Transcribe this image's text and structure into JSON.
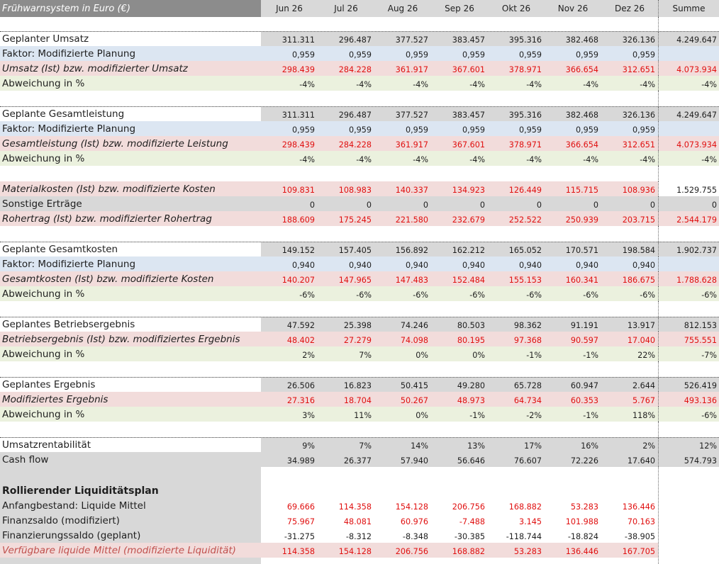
{
  "header": {
    "title": "Frühwarnsystem in Euro (€)",
    "months": [
      "Jun 26",
      "Jul 26",
      "Aug 26",
      "Sep 26",
      "Okt 26",
      "Nov 26",
      "Dez 26"
    ],
    "sum_label": "Summe"
  },
  "rows": {
    "umsatz_plan": {
      "label": "Geplanter Umsatz",
      "values": [
        "311.311",
        "296.487",
        "377.527",
        "383.457",
        "395.316",
        "382.468",
        "326.136"
      ],
      "sum": "4.249.647"
    },
    "umsatz_factor": {
      "label": "Faktor: Modifizierte Planung",
      "values": [
        "0,959",
        "0,959",
        "0,959",
        "0,959",
        "0,959",
        "0,959",
        "0,959"
      ],
      "sum": ""
    },
    "umsatz_ist": {
      "label": "Umsatz (Ist) bzw. modifizierter Umsatz",
      "values": [
        "298.439",
        "284.228",
        "361.917",
        "367.601",
        "378.971",
        "366.654",
        "312.651"
      ],
      "sum": "4.073.934"
    },
    "umsatz_dev": {
      "label": "Abweichung in %",
      "values": [
        "-4%",
        "-4%",
        "-4%",
        "-4%",
        "-4%",
        "-4%",
        "-4%"
      ],
      "sum": "-4%"
    },
    "gl_plan": {
      "label": "Geplante Gesamtleistung",
      "values": [
        "311.311",
        "296.487",
        "377.527",
        "383.457",
        "395.316",
        "382.468",
        "326.136"
      ],
      "sum": "4.249.647"
    },
    "gl_factor": {
      "label": "Faktor: Modifizierte Planung",
      "values": [
        "0,959",
        "0,959",
        "0,959",
        "0,959",
        "0,959",
        "0,959",
        "0,959"
      ],
      "sum": ""
    },
    "gl_ist": {
      "label": "Gesamtleistung (Ist) bzw. modifizierte Leistung",
      "values": [
        "298.439",
        "284.228",
        "361.917",
        "367.601",
        "378.971",
        "366.654",
        "312.651"
      ],
      "sum": "4.073.934"
    },
    "gl_dev": {
      "label": "Abweichung in %",
      "values": [
        "-4%",
        "-4%",
        "-4%",
        "-4%",
        "-4%",
        "-4%",
        "-4%"
      ],
      "sum": "-4%"
    },
    "material": {
      "label": "Materialkosten (Ist) bzw. modifizierte Kosten",
      "values": [
        "109.831",
        "108.983",
        "140.337",
        "134.923",
        "126.449",
        "115.715",
        "108.936"
      ],
      "sum": "1.529.755"
    },
    "sonstige": {
      "label": "Sonstige Erträge",
      "values": [
        "0",
        "0",
        "0",
        "0",
        "0",
        "0",
        "0"
      ],
      "sum": "0"
    },
    "rohertrag": {
      "label": "Rohertrag (Ist) bzw. modifizierter Rohertrag",
      "values": [
        "188.609",
        "175.245",
        "221.580",
        "232.679",
        "252.522",
        "250.939",
        "203.715"
      ],
      "sum": "2.544.179"
    },
    "gk_plan": {
      "label": "Geplante Gesamtkosten",
      "values": [
        "149.152",
        "157.405",
        "156.892",
        "162.212",
        "165.052",
        "170.571",
        "198.584"
      ],
      "sum": "1.902.737"
    },
    "gk_factor": {
      "label": "Faktor: Modifizierte Planung",
      "values": [
        "0,940",
        "0,940",
        "0,940",
        "0,940",
        "0,940",
        "0,940",
        "0,940"
      ],
      "sum": ""
    },
    "gk_ist": {
      "label": "Gesamtkosten (Ist) bzw. modifizierte Kosten",
      "values": [
        "140.207",
        "147.965",
        "147.483",
        "152.484",
        "155.153",
        "160.341",
        "186.675"
      ],
      "sum": "1.788.628"
    },
    "gk_dev": {
      "label": "Abweichung in %",
      "values": [
        "-6%",
        "-6%",
        "-6%",
        "-6%",
        "-6%",
        "-6%",
        "-6%"
      ],
      "sum": "-6%"
    },
    "be_plan": {
      "label": "Geplantes Betriebsergebnis",
      "values": [
        "47.592",
        "25.398",
        "74.246",
        "80.503",
        "98.362",
        "91.191",
        "13.917"
      ],
      "sum": "812.153"
    },
    "be_ist": {
      "label": "Betriebsergebnis (Ist) bzw. modifiziertes Ergebnis",
      "values": [
        "48.402",
        "27.279",
        "74.098",
        "80.195",
        "97.368",
        "90.597",
        "17.040"
      ],
      "sum": "755.551"
    },
    "be_dev": {
      "label": "Abweichung in %",
      "values": [
        "2%",
        "7%",
        "0%",
        "0%",
        "-1%",
        "-1%",
        "22%"
      ],
      "sum": "-7%"
    },
    "erg_plan": {
      "label": "Geplantes Ergebnis",
      "values": [
        "26.506",
        "16.823",
        "50.415",
        "49.280",
        "65.728",
        "60.947",
        "2.644"
      ],
      "sum": "526.419"
    },
    "erg_ist": {
      "label": "Modifiziertes Ergebnis",
      "values": [
        "27.316",
        "18.704",
        "50.267",
        "48.973",
        "64.734",
        "60.353",
        "5.767"
      ],
      "sum": "493.136"
    },
    "erg_dev": {
      "label": "Abweichung in %",
      "values": [
        "3%",
        "11%",
        "0%",
        "-1%",
        "-2%",
        "-1%",
        "118%"
      ],
      "sum": "-6%"
    },
    "rentab": {
      "label": "Umsatzrentabilität",
      "values": [
        "9%",
        "7%",
        "14%",
        "13%",
        "17%",
        "16%",
        "2%"
      ],
      "sum": "12%"
    },
    "cashflow": {
      "label": "Cash flow",
      "values": [
        "34.989",
        "26.377",
        "57.940",
        "56.646",
        "76.607",
        "72.226",
        "17.640"
      ],
      "sum": "574.793"
    }
  },
  "liquidity": {
    "title": "Rollierender Liquiditätsplan",
    "anfang": {
      "label": "Anfangbestand: Liquide Mittel",
      "values": [
        "69.666",
        "114.358",
        "154.128",
        "206.756",
        "168.882",
        "53.283",
        "136.446"
      ]
    },
    "finanzsaldo": {
      "label": "Finanzsaldo (modifiziert)",
      "values": [
        "75.967",
        "48.081",
        "60.976",
        "-7.488",
        "3.145",
        "101.988",
        "70.163"
      ]
    },
    "fin_geplant": {
      "label": "Finanzierungssaldo (geplant)",
      "values": [
        "-31.275",
        "-8.312",
        "-8.348",
        "-30.385",
        "-118.744",
        "-18.824",
        "-38.905"
      ]
    },
    "verfuegbar": {
      "label": "Verfügbare liquide Mittel (modifizierte Liquidität)",
      "values": [
        "114.358",
        "154.128",
        "206.756",
        "168.882",
        "53.283",
        "136.446",
        "167.705"
      ]
    }
  },
  "colors": {
    "plan_bg": "#d8d8d8",
    "factor_bg": "#dce6f2",
    "actual_bg": "#f2dcdb",
    "deviation_bg": "#ebf1de",
    "actual_text": "#e01010",
    "header_bg": "#8c8c8c"
  }
}
